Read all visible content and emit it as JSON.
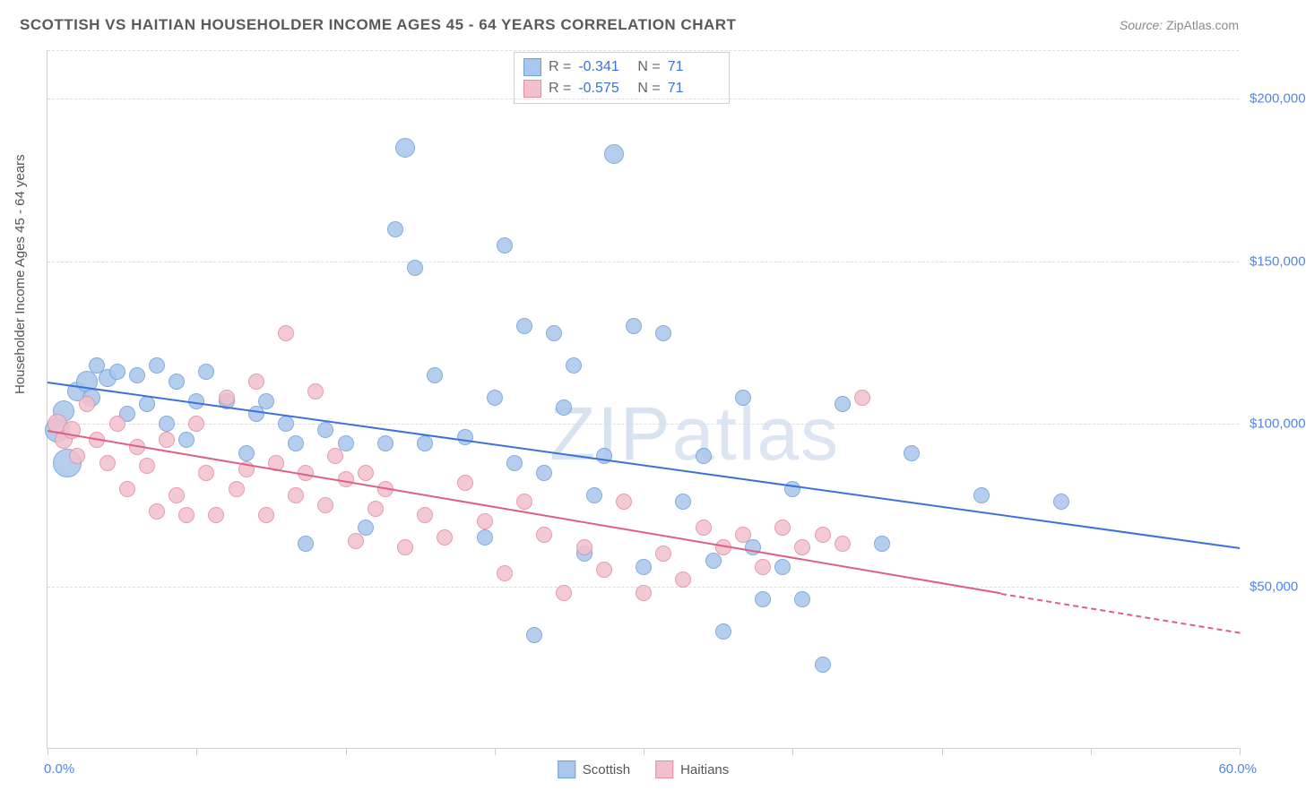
{
  "title": "SCOTTISH VS HAITIAN HOUSEHOLDER INCOME AGES 45 - 64 YEARS CORRELATION CHART",
  "source_label": "Source:",
  "source_value": "ZipAtlas.com",
  "watermark": "ZIPatlas",
  "chart": {
    "type": "scatter",
    "background_color": "#ffffff",
    "grid_color": "#dcdcdc",
    "axis_color": "#cfcfcf",
    "y_axis_title": "Householder Income Ages 45 - 64 years",
    "y_axis_title_color": "#555555",
    "y_axis_title_fontsize": 15,
    "xlim": [
      0,
      60
    ],
    "ylim": [
      0,
      215000
    ],
    "x_ticks": [
      0,
      7.5,
      15,
      22.5,
      30,
      37.5,
      45,
      52.5,
      60
    ],
    "x_label_min": "0.0%",
    "x_label_max": "60.0%",
    "x_label_color": "#4f86e8",
    "y_gridlines": [
      50000,
      100000,
      150000,
      200000,
      215000
    ],
    "y_tick_labels": {
      "50000": "$50,000",
      "100000": "$100,000",
      "150000": "$150,000",
      "200000": "$200,000"
    },
    "y_tick_color": "#4f86e8",
    "y_tick_fontsize": 15,
    "point_radius": 9,
    "point_border_width": 1,
    "point_fill_opacity": 0.35,
    "series": [
      {
        "name": "Scottish",
        "color_fill": "#a9c6ec",
        "color_stroke": "#6f9edd",
        "trend_color": "#3b72d6",
        "R": "-0.341",
        "N": "71",
        "trend": {
          "x1": 0,
          "y1": 113000,
          "x2": 60,
          "y2": 62000
        },
        "points": [
          {
            "x": 0.5,
            "y": 98000,
            "r": 14
          },
          {
            "x": 0.8,
            "y": 104000,
            "r": 12
          },
          {
            "x": 1.0,
            "y": 88000,
            "r": 16
          },
          {
            "x": 1.5,
            "y": 110000,
            "r": 11
          },
          {
            "x": 2.0,
            "y": 113000,
            "r": 12
          },
          {
            "x": 2.2,
            "y": 108000,
            "r": 10
          },
          {
            "x": 2.5,
            "y": 118000,
            "r": 9
          },
          {
            "x": 3.0,
            "y": 114000,
            "r": 10
          },
          {
            "x": 3.5,
            "y": 116000,
            "r": 9
          },
          {
            "x": 4.0,
            "y": 103000,
            "r": 9
          },
          {
            "x": 4.5,
            "y": 115000,
            "r": 9
          },
          {
            "x": 5.0,
            "y": 106000,
            "r": 9
          },
          {
            "x": 5.5,
            "y": 118000,
            "r": 9
          },
          {
            "x": 6.0,
            "y": 100000,
            "r": 9
          },
          {
            "x": 6.5,
            "y": 113000,
            "r": 9
          },
          {
            "x": 7.0,
            "y": 95000,
            "r": 9
          },
          {
            "x": 7.5,
            "y": 107000,
            "r": 9
          },
          {
            "x": 8.0,
            "y": 116000,
            "r": 9
          },
          {
            "x": 9.0,
            "y": 107000,
            "r": 9
          },
          {
            "x": 10.0,
            "y": 91000,
            "r": 9
          },
          {
            "x": 10.5,
            "y": 103000,
            "r": 9
          },
          {
            "x": 11.0,
            "y": 107000,
            "r": 9
          },
          {
            "x": 12.0,
            "y": 100000,
            "r": 9
          },
          {
            "x": 12.5,
            "y": 94000,
            "r": 9
          },
          {
            "x": 13.0,
            "y": 63000,
            "r": 9
          },
          {
            "x": 14.0,
            "y": 98000,
            "r": 9
          },
          {
            "x": 15.0,
            "y": 94000,
            "r": 9
          },
          {
            "x": 16.0,
            "y": 68000,
            "r": 9
          },
          {
            "x": 17.0,
            "y": 94000,
            "r": 9
          },
          {
            "x": 17.5,
            "y": 160000,
            "r": 9
          },
          {
            "x": 18.0,
            "y": 185000,
            "r": 11
          },
          {
            "x": 18.5,
            "y": 148000,
            "r": 9
          },
          {
            "x": 19.0,
            "y": 94000,
            "r": 9
          },
          {
            "x": 19.5,
            "y": 115000,
            "r": 9
          },
          {
            "x": 21.0,
            "y": 96000,
            "r": 9
          },
          {
            "x": 22.0,
            "y": 65000,
            "r": 9
          },
          {
            "x": 22.5,
            "y": 108000,
            "r": 9
          },
          {
            "x": 23.0,
            "y": 155000,
            "r": 9
          },
          {
            "x": 23.5,
            "y": 88000,
            "r": 9
          },
          {
            "x": 24.0,
            "y": 130000,
            "r": 9
          },
          {
            "x": 24.5,
            "y": 35000,
            "r": 9
          },
          {
            "x": 25.0,
            "y": 85000,
            "r": 9
          },
          {
            "x": 25.5,
            "y": 128000,
            "r": 9
          },
          {
            "x": 26.0,
            "y": 105000,
            "r": 9
          },
          {
            "x": 26.5,
            "y": 118000,
            "r": 9
          },
          {
            "x": 27.0,
            "y": 60000,
            "r": 9
          },
          {
            "x": 27.5,
            "y": 78000,
            "r": 9
          },
          {
            "x": 28.0,
            "y": 90000,
            "r": 9
          },
          {
            "x": 28.5,
            "y": 183000,
            "r": 11
          },
          {
            "x": 29.5,
            "y": 130000,
            "r": 9
          },
          {
            "x": 30.0,
            "y": 56000,
            "r": 9
          },
          {
            "x": 31.0,
            "y": 128000,
            "r": 9
          },
          {
            "x": 32.0,
            "y": 76000,
            "r": 9
          },
          {
            "x": 33.0,
            "y": 90000,
            "r": 9
          },
          {
            "x": 33.5,
            "y": 58000,
            "r": 9
          },
          {
            "x": 34.0,
            "y": 36000,
            "r": 9
          },
          {
            "x": 35.0,
            "y": 108000,
            "r": 9
          },
          {
            "x": 35.5,
            "y": 62000,
            "r": 9
          },
          {
            "x": 36.0,
            "y": 46000,
            "r": 9
          },
          {
            "x": 37.0,
            "y": 56000,
            "r": 9
          },
          {
            "x": 37.5,
            "y": 80000,
            "r": 9
          },
          {
            "x": 38.0,
            "y": 46000,
            "r": 9
          },
          {
            "x": 39.0,
            "y": 26000,
            "r": 9
          },
          {
            "x": 40.0,
            "y": 106000,
            "r": 9
          },
          {
            "x": 42.0,
            "y": 63000,
            "r": 9
          },
          {
            "x": 43.5,
            "y": 91000,
            "r": 9
          },
          {
            "x": 47.0,
            "y": 78000,
            "r": 9
          },
          {
            "x": 51.0,
            "y": 76000,
            "r": 9
          }
        ]
      },
      {
        "name": "Haitians",
        "color_fill": "#f2c0cc",
        "color_stroke": "#e58ba3",
        "trend_color": "#de5f85",
        "R": "-0.575",
        "N": "71",
        "trend": {
          "x1": 0,
          "y1": 98000,
          "x2": 48,
          "y2": 48000
        },
        "trend_dash": {
          "x1": 48,
          "y1": 48000,
          "x2": 60,
          "y2": 36000
        },
        "points": [
          {
            "x": 0.5,
            "y": 100000,
            "r": 11
          },
          {
            "x": 0.8,
            "y": 95000,
            "r": 10
          },
          {
            "x": 1.2,
            "y": 98000,
            "r": 10
          },
          {
            "x": 1.5,
            "y": 90000,
            "r": 9
          },
          {
            "x": 2.0,
            "y": 106000,
            "r": 9
          },
          {
            "x": 2.5,
            "y": 95000,
            "r": 9
          },
          {
            "x": 3.0,
            "y": 88000,
            "r": 9
          },
          {
            "x": 3.5,
            "y": 100000,
            "r": 9
          },
          {
            "x": 4.0,
            "y": 80000,
            "r": 9
          },
          {
            "x": 4.5,
            "y": 93000,
            "r": 9
          },
          {
            "x": 5.0,
            "y": 87000,
            "r": 9
          },
          {
            "x": 5.5,
            "y": 73000,
            "r": 9
          },
          {
            "x": 6.0,
            "y": 95000,
            "r": 9
          },
          {
            "x": 6.5,
            "y": 78000,
            "r": 9
          },
          {
            "x": 7.0,
            "y": 72000,
            "r": 9
          },
          {
            "x": 7.5,
            "y": 100000,
            "r": 9
          },
          {
            "x": 8.0,
            "y": 85000,
            "r": 9
          },
          {
            "x": 8.5,
            "y": 72000,
            "r": 9
          },
          {
            "x": 9.0,
            "y": 108000,
            "r": 9
          },
          {
            "x": 9.5,
            "y": 80000,
            "r": 9
          },
          {
            "x": 10.0,
            "y": 86000,
            "r": 9
          },
          {
            "x": 10.5,
            "y": 113000,
            "r": 9
          },
          {
            "x": 11.0,
            "y": 72000,
            "r": 9
          },
          {
            "x": 11.5,
            "y": 88000,
            "r": 9
          },
          {
            "x": 12.0,
            "y": 128000,
            "r": 9
          },
          {
            "x": 12.5,
            "y": 78000,
            "r": 9
          },
          {
            "x": 13.0,
            "y": 85000,
            "r": 9
          },
          {
            "x": 13.5,
            "y": 110000,
            "r": 9
          },
          {
            "x": 14.0,
            "y": 75000,
            "r": 9
          },
          {
            "x": 14.5,
            "y": 90000,
            "r": 9
          },
          {
            "x": 15.0,
            "y": 83000,
            "r": 9
          },
          {
            "x": 15.5,
            "y": 64000,
            "r": 9
          },
          {
            "x": 16.0,
            "y": 85000,
            "r": 9
          },
          {
            "x": 16.5,
            "y": 74000,
            "r": 9
          },
          {
            "x": 17.0,
            "y": 80000,
            "r": 9
          },
          {
            "x": 18.0,
            "y": 62000,
            "r": 9
          },
          {
            "x": 19.0,
            "y": 72000,
            "r": 9
          },
          {
            "x": 20.0,
            "y": 65000,
            "r": 9
          },
          {
            "x": 21.0,
            "y": 82000,
            "r": 9
          },
          {
            "x": 22.0,
            "y": 70000,
            "r": 9
          },
          {
            "x": 23.0,
            "y": 54000,
            "r": 9
          },
          {
            "x": 24.0,
            "y": 76000,
            "r": 9
          },
          {
            "x": 25.0,
            "y": 66000,
            "r": 9
          },
          {
            "x": 26.0,
            "y": 48000,
            "r": 9
          },
          {
            "x": 27.0,
            "y": 62000,
            "r": 9
          },
          {
            "x": 28.0,
            "y": 55000,
            "r": 9
          },
          {
            "x": 29.0,
            "y": 76000,
            "r": 9
          },
          {
            "x": 30.0,
            "y": 48000,
            "r": 9
          },
          {
            "x": 31.0,
            "y": 60000,
            "r": 9
          },
          {
            "x": 32.0,
            "y": 52000,
            "r": 9
          },
          {
            "x": 33.0,
            "y": 68000,
            "r": 9
          },
          {
            "x": 34.0,
            "y": 62000,
            "r": 9
          },
          {
            "x": 35.0,
            "y": 66000,
            "r": 9
          },
          {
            "x": 36.0,
            "y": 56000,
            "r": 9
          },
          {
            "x": 37.0,
            "y": 68000,
            "r": 9
          },
          {
            "x": 38.0,
            "y": 62000,
            "r": 9
          },
          {
            "x": 39.0,
            "y": 66000,
            "r": 9
          },
          {
            "x": 40.0,
            "y": 63000,
            "r": 9
          },
          {
            "x": 41.0,
            "y": 108000,
            "r": 9
          }
        ]
      }
    ],
    "stats_box": {
      "r_label": "R =",
      "n_label": "N ="
    },
    "legend": {
      "items": [
        "Scottish",
        "Haitians"
      ]
    }
  }
}
